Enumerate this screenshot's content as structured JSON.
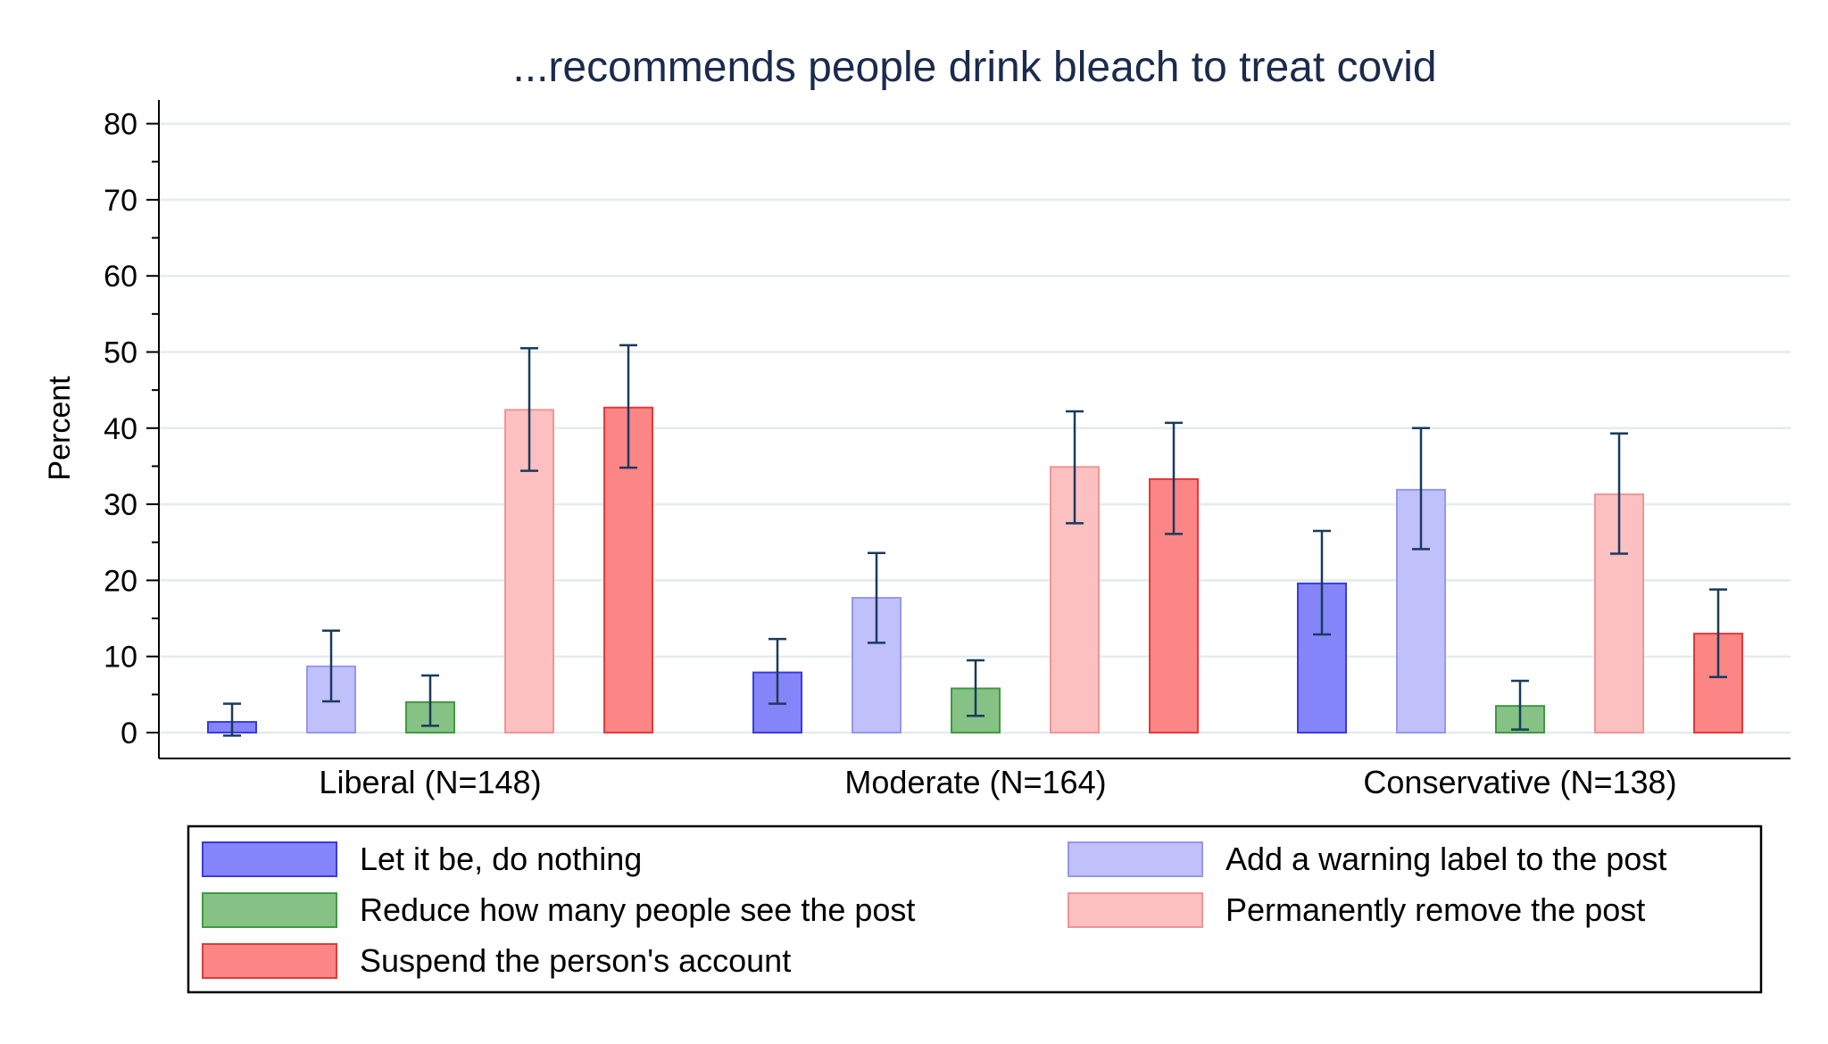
{
  "chart_data": {
    "type": "bar",
    "title": "...recommends people drink bleach to treat covid",
    "ylabel": "Percent",
    "xlabel": "",
    "ylim": [
      0,
      80
    ],
    "yticks": [
      0,
      10,
      20,
      30,
      40,
      50,
      60,
      70,
      80
    ],
    "grid": true,
    "legend_position": "bottom",
    "categories": [
      "Liberal (N=148)",
      "Moderate (N=164)",
      "Conservative (N=138)"
    ],
    "series": [
      {
        "name": "Let it be, do nothing",
        "color": "#8585fa",
        "stroke": "#3a3ae0",
        "values": [
          1.4,
          7.9,
          19.6
        ],
        "ci_low": [
          -0.4,
          3.8,
          12.9
        ],
        "ci_high": [
          3.8,
          12.3,
          26.5
        ]
      },
      {
        "name": "Add a warning label to the post",
        "color": "#c0c0fb",
        "stroke": "#9696f0",
        "values": [
          8.7,
          17.7,
          31.9
        ],
        "ci_low": [
          4.1,
          11.8,
          24.1
        ],
        "ci_high": [
          13.4,
          23.6,
          40.0
        ]
      },
      {
        "name": "Reduce how many people see the post",
        "color": "#86c286",
        "stroke": "#3f9a3f",
        "values": [
          4.0,
          5.8,
          3.5
        ],
        "ci_low": [
          0.9,
          2.2,
          0.4
        ],
        "ci_high": [
          7.5,
          9.5,
          6.8
        ]
      },
      {
        "name": "Permanently remove the post",
        "color": "#fcc0c0",
        "stroke": "#f09595",
        "values": [
          42.4,
          34.9,
          31.3
        ],
        "ci_low": [
          34.4,
          27.5,
          23.5
        ],
        "ci_high": [
          50.5,
          42.2,
          39.3
        ]
      },
      {
        "name": "Suspend the person's account",
        "color": "#fc8585",
        "stroke": "#e03a3a",
        "values": [
          42.7,
          33.3,
          13.0
        ],
        "ci_low": [
          34.8,
          26.1,
          7.3
        ],
        "ci_high": [
          50.9,
          40.7,
          18.8
        ]
      }
    ],
    "legend_order": [
      0,
      1,
      2,
      3,
      4
    ]
  },
  "colors": {
    "title": "#1a2b4c",
    "errorbar": "#1a3a5c",
    "grid": "#e3ecec",
    "axis": "#000000"
  }
}
